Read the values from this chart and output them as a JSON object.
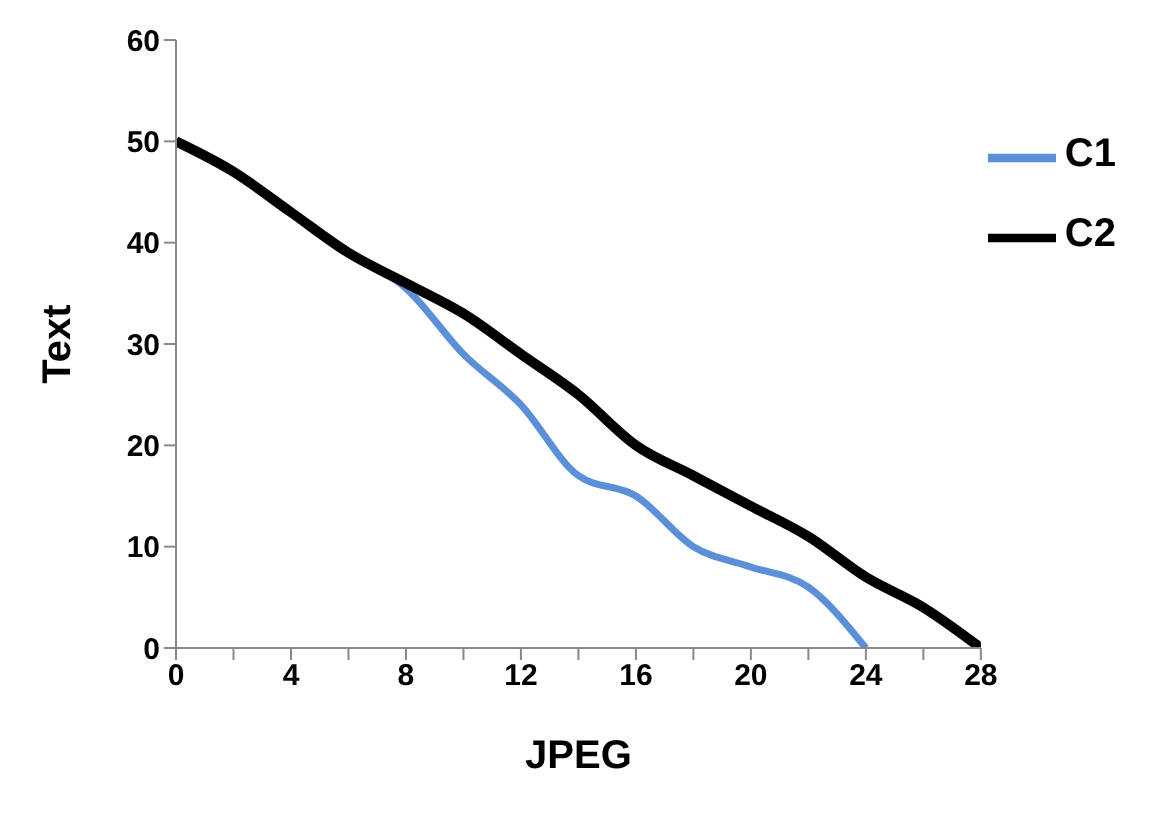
{
  "chart_data": {
    "type": "line",
    "xlabel": "JPEG",
    "ylabel": "Text",
    "x": [
      0,
      2,
      4,
      6,
      8,
      10,
      12,
      14,
      16,
      18,
      20,
      22,
      24,
      26,
      28
    ],
    "series": [
      {
        "name": "C1",
        "color": "#5b8fd9",
        "values": [
          null,
          null,
          null,
          39,
          35.5,
          29,
          24,
          17,
          15,
          10,
          8,
          6,
          0,
          null,
          null
        ]
      },
      {
        "name": "C2",
        "color": "#000000",
        "values": [
          50,
          47,
          43,
          39,
          36,
          33,
          29,
          25,
          20,
          17,
          14,
          11,
          7,
          4,
          0
        ]
      }
    ],
    "xlim": [
      0,
      28
    ],
    "xticks": [
      0,
      {
        "value": 2,
        "label": null
      },
      4,
      {
        "value": 6,
        "label": null
      },
      8,
      {
        "value": 10,
        "label": null
      },
      12,
      {
        "value": 14,
        "label": null
      },
      16,
      {
        "value": 18,
        "label": null
      },
      20,
      {
        "value": 22,
        "label": null
      },
      24,
      {
        "value": 26,
        "label": null
      },
      28
    ],
    "ylim": [
      0,
      60
    ],
    "yticks": [
      0,
      10,
      20,
      30,
      40,
      50,
      60
    ],
    "grid": false,
    "legend": "right",
    "marker": "none",
    "line_style": "solid"
  }
}
